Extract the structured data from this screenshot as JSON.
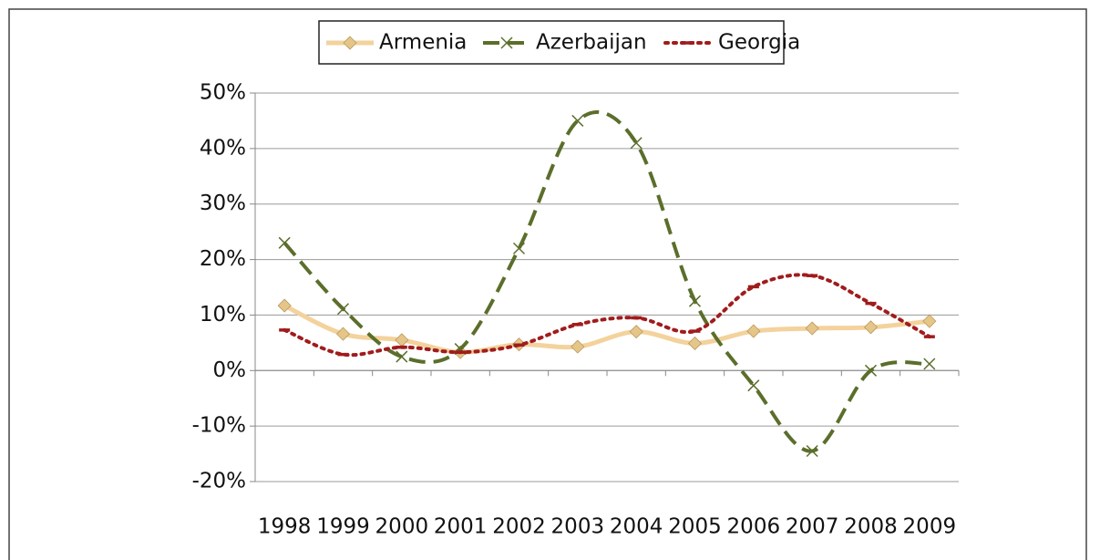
{
  "chart_data": {
    "type": "line",
    "categories": [
      "1998",
      "1999",
      "2000",
      "2001",
      "2002",
      "2003",
      "2004",
      "2005",
      "2006",
      "2007",
      "2008",
      "2009"
    ],
    "series": [
      {
        "name": "Armenia",
        "color": "#f3d29c",
        "marker_color": "#e6c588",
        "marker": "diamond",
        "dash": "solid",
        "values": [
          11.7,
          6.6,
          5.5,
          3.3,
          4.7,
          4.3,
          7.0,
          4.9,
          7.1,
          7.6,
          7.8,
          8.9
        ]
      },
      {
        "name": "Azerbaijan",
        "color": "#5b6e2b",
        "marker_color": "#5b6e2b",
        "marker": "x",
        "dash": "dashed",
        "values": [
          23,
          11.1,
          2.5,
          3.9,
          22,
          45,
          41,
          12.5,
          -2.7,
          -14.5,
          0,
          1.2
        ]
      },
      {
        "name": "Georgia",
        "color": "#a01c1c",
        "marker_color": "#a01c1c",
        "marker": "dash",
        "dash": "dotted",
        "values": [
          7.3,
          2.9,
          4.2,
          3.3,
          4.6,
          8.3,
          9.5,
          7.1,
          15.1,
          17.1,
          12.1,
          6.1
        ]
      }
    ],
    "ylim": [
      -20,
      50
    ],
    "yticks": [
      {
        "value": -20,
        "label": "-20%"
      },
      {
        "value": -10,
        "label": "-10%"
      },
      {
        "value": 0,
        "label": "0%"
      },
      {
        "value": 10,
        "label": "10%"
      },
      {
        "value": 20,
        "label": "20%"
      },
      {
        "value": 30,
        "label": "30%"
      },
      {
        "value": 40,
        "label": "40%"
      },
      {
        "value": 50,
        "label": "50%"
      }
    ],
    "grid": true,
    "smooth": true,
    "legend": "top"
  }
}
